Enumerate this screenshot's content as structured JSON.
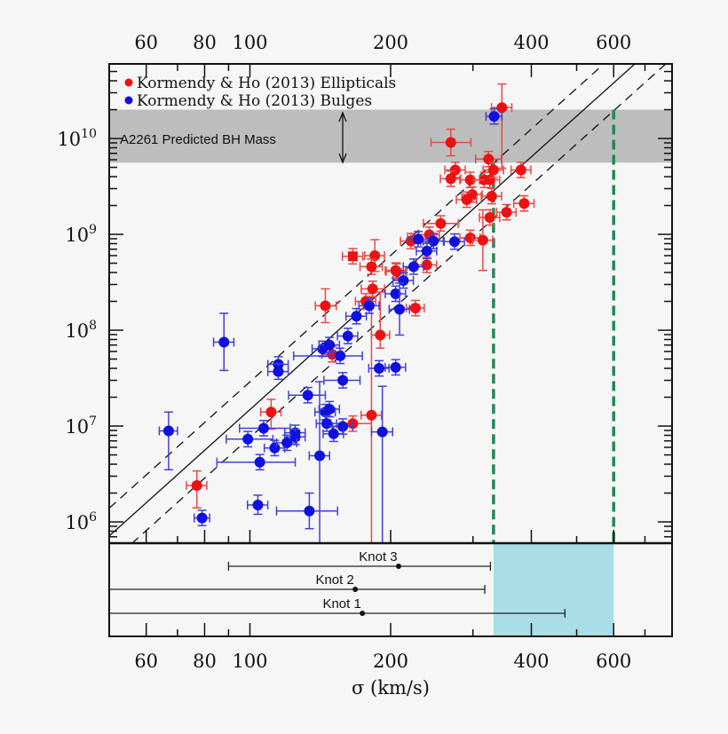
{
  "chart_data": {
    "type": "scatter",
    "xlabel": "σ (km/s)",
    "xscale": "log",
    "yscale": "log",
    "xlim": [
      50,
      800
    ],
    "ylim": [
      600000,
      60000000000
    ],
    "xticks": [
      60,
      80,
      100,
      200,
      400,
      600
    ],
    "xtick_labels": [
      "60",
      "80",
      "100",
      "200",
      "400",
      "600"
    ],
    "yticks": [
      1000000,
      10000000,
      100000000,
      1000000000,
      10000000000
    ],
    "ytick_labels": [
      {
        "base": "10",
        "exp": "6"
      },
      {
        "base": "10",
        "exp": "7"
      },
      {
        "base": "10",
        "exp": "8"
      },
      {
        "base": "10",
        "exp": "9"
      },
      {
        "base": "10",
        "exp": "10"
      }
    ],
    "grid": false,
    "legend_position": "top-left",
    "colors": {
      "ellipticals": "#ee1111",
      "bulges": "#1010e0",
      "band": "#bdbdbd",
      "range_box": "#a9dde8",
      "vertical_lines": "#1f8a55"
    },
    "default_errors": {
      "sigma_frac": 0.05,
      "mbh_dex": 0.08
    },
    "series": [
      {
        "name": "Kormendy & Ho (2013) Ellipticals",
        "color": "#ee1111",
        "points": [
          {
            "sigma": 346,
            "mbh": 21000000000.0,
            "mbh_range": [
              4900000000.0,
              37000000000.0
            ]
          },
          {
            "sigma": 269,
            "mbh": 9100000000.0,
            "sigma_range": [
              244,
              297
            ],
            "mbh_range": [
              6600000000.0,
              12500000000.0
            ]
          },
          {
            "sigma": 324,
            "mbh": 6100000000.0,
            "sigma_range": [
              304,
              345
            ]
          },
          {
            "sigma": 275,
            "mbh": 4700000000.0
          },
          {
            "sigma": 269,
            "mbh": 3800000000.0
          },
          {
            "sigma": 296,
            "mbh": 3700000000.0
          },
          {
            "sigma": 317,
            "mbh": 3700000000.0
          },
          {
            "sigma": 326,
            "mbh": 3700000000.0
          },
          {
            "sigma": 332,
            "mbh": 4700000000.0
          },
          {
            "sigma": 380,
            "mbh": 4700000000.0,
            "sigma_range": [
              362,
              399
            ]
          },
          {
            "sigma": 299,
            "mbh": 2600000000.0
          },
          {
            "sigma": 291,
            "mbh": 2300000000.0
          },
          {
            "sigma": 329,
            "mbh": 2500000000.0
          },
          {
            "sigma": 386,
            "mbh": 2100000000.0
          },
          {
            "sigma": 354,
            "mbh": 1700000000.0,
            "sigma_range": [
              337,
              371
            ]
          },
          {
            "sigma": 326,
            "mbh": 1500000000.0
          },
          {
            "sigma": 256,
            "mbh": 1300000000.0,
            "sigma_range": [
              235,
              279
            ]
          },
          {
            "sigma": 242,
            "mbh": 990000000.0
          },
          {
            "sigma": 221,
            "mbh": 850000000.0
          },
          {
            "sigma": 296,
            "mbh": 920000000.0
          },
          {
            "sigma": 315,
            "mbh": 870000000.0,
            "mbh_range": [
              420000000.0,
              1800000000.0
            ]
          },
          {
            "sigma": 239,
            "mbh": 480000000.0
          },
          {
            "sigma": 205,
            "mbh": 420000000.0
          },
          {
            "sigma": 185,
            "mbh": 600000000.0,
            "sigma_range": [
              176,
              194
            ],
            "mbh_range": [
              410000000.0,
              880000000.0
            ]
          },
          {
            "sigma": 166,
            "mbh": 590000000.0,
            "marker": "square"
          },
          {
            "sigma": 182,
            "mbh": 460000000.0,
            "sigma_range": [
              172,
              192
            ]
          },
          {
            "sigma": 206,
            "mbh": 410000000.0
          },
          {
            "sigma": 183,
            "mbh": 270000000.0,
            "sigma_range": [
              173,
              194
            ]
          },
          {
            "sigma": 177,
            "mbh": 200000000.0
          },
          {
            "sigma": 226,
            "mbh": 170000000.0,
            "sigma_range": [
              216,
              236
            ]
          },
          {
            "sigma": 145,
            "mbh": 180000000.0,
            "sigma_range": [
              138,
              153
            ],
            "mbh_range": [
              120000000.0,
              270000000.0
            ]
          },
          {
            "sigma": 190,
            "mbh": 89000000.0,
            "sigma_range": [
              182,
              199
            ],
            "mbh_range": [
              65000000.0,
              250000000.0
            ]
          },
          {
            "sigma": 150,
            "mbh": 56000000.0
          },
          {
            "sigma": 111,
            "mbh": 14000000.0,
            "mbh_range": [
              9300000.0,
              19000000.0
            ]
          },
          {
            "sigma": 77,
            "mbh": 2400000.0,
            "mbh_range": [
              1400000.0,
              3400000.0
            ]
          },
          {
            "sigma": 166,
            "mbh": 10600000.0,
            "sigma_range": [
              149,
              182
            ]
          },
          {
            "sigma": 182,
            "mbh": 13000000.0,
            "mbh_range": [
              600000.0,
              220000000.0
            ]
          }
        ]
      },
      {
        "name": "Kormendy & Ho (2013) Bulges",
        "color": "#1010e0",
        "points": [
          {
            "sigma": 333,
            "mbh": 17000000000.0,
            "sigma_range": [
              320,
              346
            ]
          },
          {
            "sigma": 247,
            "mbh": 850000000.0
          },
          {
            "sigma": 274,
            "mbh": 840000000.0
          },
          {
            "sigma": 229,
            "mbh": 890000000.0
          },
          {
            "sigma": 239,
            "mbh": 670000000.0
          },
          {
            "sigma": 224,
            "mbh": 460000000.0
          },
          {
            "sigma": 213,
            "mbh": 330000000.0
          },
          {
            "sigma": 205,
            "mbh": 240000000.0
          },
          {
            "sigma": 180,
            "mbh": 180000000.0
          },
          {
            "sigma": 209,
            "mbh": 165000000.0,
            "mbh_range": [
              89000000.0,
              310000000.0
            ]
          },
          {
            "sigma": 169,
            "mbh": 140000000.0
          },
          {
            "sigma": 162,
            "mbh": 87000000.0
          },
          {
            "sigma": 143,
            "mbh": 64000000.0
          },
          {
            "sigma": 148,
            "mbh": 70000000.0
          },
          {
            "sigma": 156,
            "mbh": 54000000.0,
            "sigma_range": [
              124,
              174
            ]
          },
          {
            "sigma": 189,
            "mbh": 40000000.0
          },
          {
            "sigma": 205,
            "mbh": 41000000.0
          },
          {
            "sigma": 158,
            "mbh": 30000000.0,
            "sigma_range": [
              144,
              172
            ]
          },
          {
            "sigma": 115,
            "mbh": 44000000.0
          },
          {
            "sigma": 115,
            "mbh": 37000000.0
          },
          {
            "sigma": 133,
            "mbh": 21000000.0,
            "sigma_range": [
              121,
              145
            ]
          },
          {
            "sigma": 88,
            "mbh": 75000000.0,
            "mbh_range": [
              38000000.0,
              150000000.0
            ]
          },
          {
            "sigma": 67,
            "mbh": 8900000.0,
            "sigma_range": [
              64,
              70
            ],
            "mbh_range": [
              3500000.0,
              14000000.0
            ]
          },
          {
            "sigma": 79,
            "mbh": 1100000.0,
            "sigma_range": [
              76,
              82
            ]
          },
          {
            "sigma": 107,
            "mbh": 9500000.0,
            "sigma_range": [
              95,
              122
            ]
          },
          {
            "sigma": 99,
            "mbh": 7300000.0,
            "sigma_range": [
              89,
              112
            ]
          },
          {
            "sigma": 113,
            "mbh": 5900000.0
          },
          {
            "sigma": 105,
            "mbh": 4200000.0,
            "sigma_range": [
              85,
              125
            ]
          },
          {
            "sigma": 104,
            "mbh": 1500000.0,
            "mbh_range": [
              1200000.0,
              1900000.0
            ]
          },
          {
            "sigma": 145,
            "mbh": 14000000.0
          },
          {
            "sigma": 148,
            "mbh": 15000000.0
          },
          {
            "sigma": 146,
            "mbh": 10600000.0
          },
          {
            "sigma": 158,
            "mbh": 9900000.0
          },
          {
            "sigma": 192,
            "mbh": 8700000.0,
            "sigma_range": [
              182,
              202
            ],
            "mbh_range": [
              600000.0,
              26000000.0
            ]
          },
          {
            "sigma": 151,
            "mbh": 8300000.0
          },
          {
            "sigma": 125,
            "mbh": 8500000.0
          },
          {
            "sigma": 125,
            "mbh": 7700000.0
          },
          {
            "sigma": 120,
            "mbh": 6700000.0
          },
          {
            "sigma": 141,
            "mbh": 4900000.0,
            "mbh_range": [
              600000.0,
              29000000.0
            ]
          },
          {
            "sigma": 134,
            "mbh": 1300000.0,
            "sigma_range": [
              114,
              154
            ],
            "mbh_range": [
              850000.0,
              2000000.0
            ]
          }
        ]
      }
    ],
    "relation": {
      "style": "solid",
      "mbh_at_200": 309000000.0,
      "slope": 4.38,
      "scatter_dex": 0.29,
      "scatter_style": "dashed"
    },
    "band": {
      "label": "A2261 Predicted BH Mass",
      "mbh_range": [
        5600000000.0,
        20000000000.0
      ]
    },
    "vertical_lines": [
      {
        "sigma": 332,
        "from_mbh": 5600000000.0
      },
      {
        "sigma": 600,
        "from_mbh": 20000000000.0
      }
    ],
    "lower_panel": {
      "range_box": {
        "sigma_range": [
          332,
          600
        ]
      },
      "knots": [
        {
          "label": "Knot 3",
          "sigma": 208,
          "sigma_range": [
            90,
            327
          ]
        },
        {
          "label": "Knot 2",
          "sigma": 168,
          "sigma_range": [
            null,
            318
          ]
        },
        {
          "label": "Knot 1",
          "sigma": 174,
          "sigma_range": [
            null,
            472
          ]
        }
      ]
    }
  }
}
